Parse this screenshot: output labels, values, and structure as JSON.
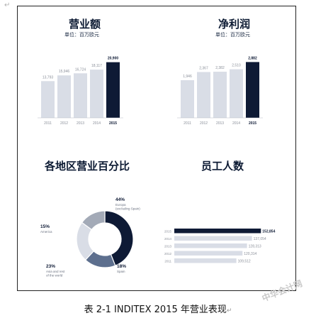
{
  "page": {
    "corner_mark": "↵",
    "caption": "表 2-1 INDITEX 2015 年营业表现",
    "caption_mark": "↵",
    "watermark": "中华会计网"
  },
  "panels": {
    "sales": {
      "title": "营业额",
      "subtitle": "单位：百万欧元"
    },
    "profit": {
      "title": "净利润",
      "subtitle": "单位：百万欧元"
    },
    "region": {
      "title": "各地区营业百分比"
    },
    "staff": {
      "title": "员工人数"
    }
  },
  "colors": {
    "highlight": "#0e1a35",
    "muted": "#d9dde6",
    "donut": [
      "#0e1a35",
      "#5d6f8e",
      "#d9dde6",
      "#a3aab7"
    ]
  },
  "chart_data": [
    {
      "type": "bar",
      "title": "营业额",
      "categories": [
        "2011",
        "2012",
        "2013",
        "2014",
        "2015"
      ],
      "values": [
        13793,
        15946,
        16724,
        18117,
        20900
      ],
      "labels": [
        "13,793",
        "15,946",
        "16,724",
        "18,117",
        "20,900"
      ],
      "highlight_index": 4,
      "ylim": [
        0,
        24000
      ]
    },
    {
      "type": "bar",
      "title": "净利润",
      "categories": [
        "2011",
        "2012",
        "2013",
        "2014",
        "2015"
      ],
      "values": [
        1946,
        2367,
        2382,
        2510,
        2882
      ],
      "labels": [
        "1,946",
        "2,367",
        "2,382",
        "2,510",
        "2,882"
      ],
      "highlight_index": 4,
      "ylim": [
        0,
        3300
      ]
    },
    {
      "type": "pie",
      "title": "各地区营业百分比",
      "slices": [
        {
          "name": "Europa (excluding Spain)",
          "pct": 44,
          "label": "44%",
          "text": [
            "Europa",
            "(excluding Spain)"
          ]
        },
        {
          "name": "Spain",
          "pct": 18,
          "label": "18%",
          "text": [
            "Spain"
          ]
        },
        {
          "name": "Asia and rest of the world",
          "pct": 23,
          "label": "23%",
          "text": [
            "Asia and rest",
            "of the world"
          ]
        },
        {
          "name": "America",
          "pct": 15,
          "label": "15%",
          "text": [
            "America"
          ]
        }
      ]
    },
    {
      "type": "bar",
      "orientation": "horizontal",
      "title": "员工人数",
      "categories": [
        "2015",
        "2014",
        "2013",
        "2012",
        "2011"
      ],
      "values": [
        152854,
        137054,
        128313,
        120314,
        109512
      ],
      "labels": [
        "152,854",
        "137,054",
        "128,313",
        "120,314",
        "109,512"
      ],
      "highlight_index": 0,
      "xlim": [
        0,
        160000
      ]
    }
  ]
}
